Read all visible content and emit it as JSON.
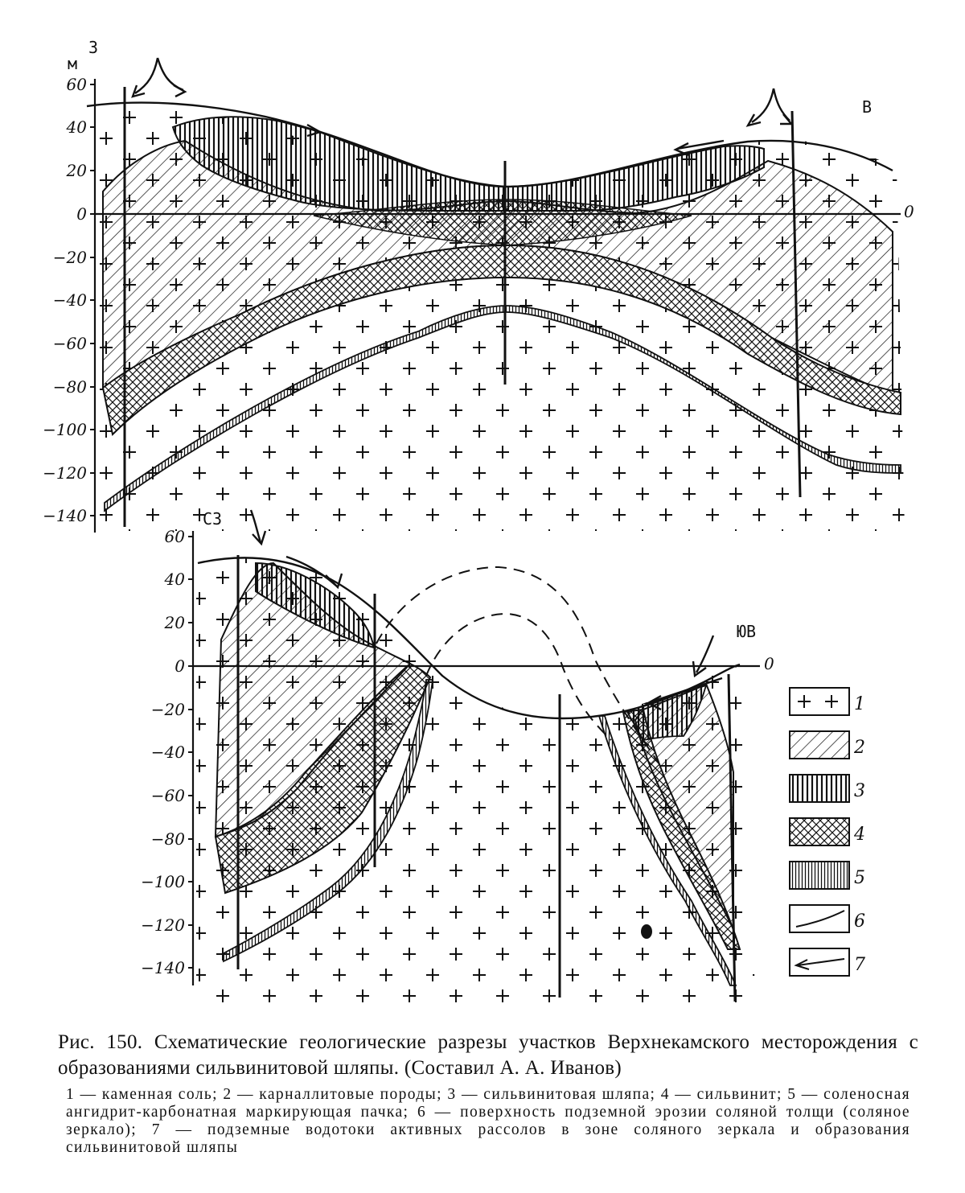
{
  "upper_section": {
    "unit_label": "м",
    "dir_left": "З",
    "dir_right": "В",
    "zero_label": "0",
    "y_ticks": [
      "60",
      "40",
      "20",
      "0",
      "−20",
      "−40",
      "−60",
      "−80",
      "−100",
      "−120",
      "−140"
    ]
  },
  "lower_section": {
    "dir_left": "СЗ",
    "dir_right": "ЮВ",
    "zero_label": "0",
    "y_ticks": [
      "60",
      "40",
      "20",
      "0",
      "−20",
      "−40",
      "−60",
      "−80",
      "−100",
      "−120",
      "−140"
    ]
  },
  "legend": [
    {
      "key": "1",
      "pattern": "plus"
    },
    {
      "key": "2",
      "pattern": "diagonal-hatch"
    },
    {
      "key": "3",
      "pattern": "vertical-hatch"
    },
    {
      "key": "4",
      "pattern": "cross-hatch"
    },
    {
      "key": "5",
      "pattern": "fine-vertical"
    },
    {
      "key": "6",
      "pattern": "curve-line"
    },
    {
      "key": "7",
      "pattern": "arrow"
    }
  ],
  "caption": {
    "title": "Рис. 150. Схематические геологические разрезы участков Верхнекамского месторождения с образованиями сильвинитовой шляпы. (Составил А. А. Иванов)",
    "notes": "1 — каменная соль; 2 — карналлитовые породы; 3 — сильвинитовая шляпа; 4 — сильвинит; 5 — соленосная ангидрит-карбонатная маркирующая пачка; 6 — поверхность подземной эрозии соляной толщи (соляное зеркало); 7 — подземные водотоки активных рассолов в зоне соляного зеркала и образования сильвинитовой шляпы"
  },
  "colors": {
    "ink": "#111111",
    "paper": "#ffffff"
  }
}
